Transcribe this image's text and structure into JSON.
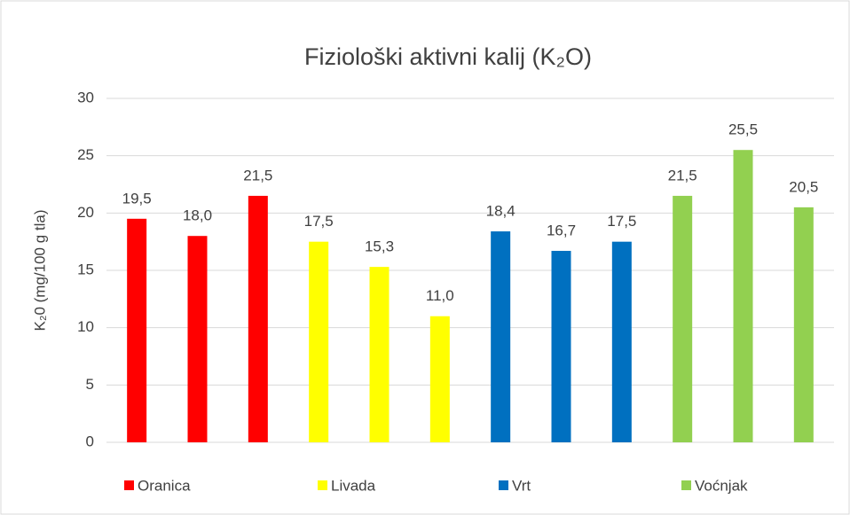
{
  "chart_data": {
    "type": "bar",
    "title": "Fiziološki aktivni kalij (K₂O)",
    "y_label": "K₂0  (mg/100 g tla)",
    "categories": [
      null,
      null,
      null,
      null,
      null,
      null,
      null,
      null,
      null,
      null,
      null,
      null
    ],
    "series": [
      {
        "name": "Oranica",
        "color": "#ff0000",
        "values": [
          19.5,
          18.0,
          21.5,
          null,
          null,
          null,
          null,
          null,
          null,
          null,
          null,
          null
        ],
        "value_labels": [
          "19,5",
          "18,0",
          "21,5",
          null,
          null,
          null,
          null,
          null,
          null,
          null,
          null,
          null
        ]
      },
      {
        "name": "Livada",
        "color": "#ffff00",
        "values": [
          null,
          null,
          null,
          17.5,
          15.3,
          11.0,
          null,
          null,
          null,
          null,
          null,
          null
        ],
        "value_labels": [
          null,
          null,
          null,
          "17,5",
          "15,3",
          "11,0",
          null,
          null,
          null,
          null,
          null,
          null
        ]
      },
      {
        "name": "Vrt",
        "color": "#0070c0",
        "values": [
          null,
          null,
          null,
          null,
          null,
          null,
          18.4,
          16.7,
          17.5,
          null,
          null,
          null
        ],
        "value_labels": [
          null,
          null,
          null,
          null,
          null,
          null,
          "18,4",
          "16,7",
          "17,5",
          null,
          null,
          null
        ]
      },
      {
        "name": "Voćnjak",
        "color": "#92d050",
        "values": [
          null,
          null,
          null,
          null,
          null,
          null,
          null,
          null,
          null,
          21.5,
          25.5,
          20.5
        ],
        "value_labels": [
          null,
          null,
          null,
          null,
          null,
          null,
          null,
          null,
          null,
          "21,5",
          "25,5",
          "20,5"
        ]
      }
    ],
    "ylim": [
      0,
      30
    ],
    "yticks": [
      0,
      5,
      10,
      15,
      20,
      25,
      30
    ],
    "grid": true,
    "legend": "bottom"
  }
}
